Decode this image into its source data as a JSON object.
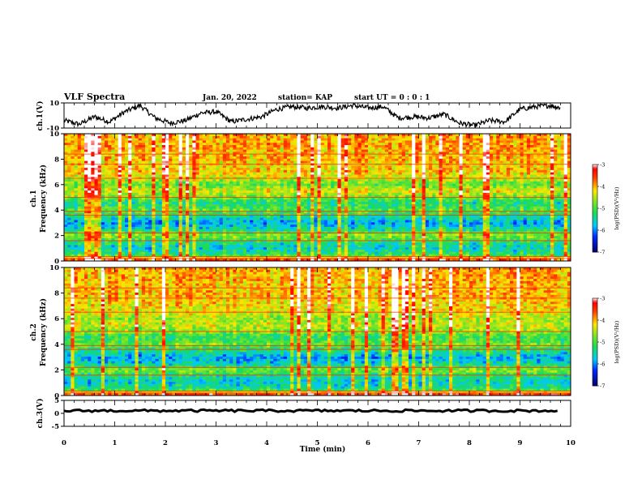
{
  "header": {
    "title": "VLF Spectra",
    "date": "Jan. 20, 2022",
    "station": "station= KAP",
    "start": "start UT =  0 : 0 : 1"
  },
  "chart_data": [
    {
      "type": "line",
      "name": "ch1-voltage",
      "ylabel": "ch.1(V)",
      "ylim": [
        -10,
        10
      ],
      "yticks": [
        "10",
        "-10"
      ],
      "x": [
        0,
        0.3,
        0.6,
        0.9,
        1.2,
        1.5,
        1.8,
        2.1,
        2.4,
        2.7,
        3.0,
        3.3,
        3.6,
        3.9,
        4.2,
        4.5,
        4.8,
        5.1,
        5.4,
        5.7,
        6.0,
        6.3,
        6.6,
        6.9,
        7.2,
        7.5,
        7.8,
        8.1,
        8.4,
        8.7,
        9.0,
        9.3,
        9.6,
        9.8
      ],
      "values": [
        -4,
        -7,
        -1,
        -5,
        3,
        8,
        -2,
        -6,
        -4,
        2,
        3,
        -5,
        -3,
        -1,
        5,
        7,
        6,
        7,
        6,
        8,
        6,
        7,
        -2,
        -1,
        -2,
        1,
        -6,
        -8,
        -4,
        -5,
        5,
        7,
        8,
        6
      ],
      "grid": false
    },
    {
      "type": "heatmap",
      "name": "ch1-spectrogram",
      "ylabel": "ch.1\nFrequency (kHz)",
      "ylim": [
        0,
        10
      ],
      "yticks": [
        "0",
        "2",
        "4",
        "6",
        "8",
        "10"
      ],
      "xlim": [
        0,
        10
      ],
      "colorbar": {
        "label": "log(PSD)(V²/Hz)",
        "ticks": [
          "-3",
          "-4",
          "-5",
          "-6",
          "-7"
        ],
        "range": [
          -7,
          -3
        ]
      },
      "band_levels_khz": [
        0,
        0.5,
        1,
        1.5,
        2,
        2.5,
        3,
        3.5,
        4,
        4.5,
        5,
        5.5,
        6,
        6.5,
        7,
        7.5,
        8,
        8.5,
        9,
        9.5,
        10
      ],
      "band_log_psd": [
        -3.2,
        -5.2,
        -5.6,
        -5.3,
        -4.6,
        -5.5,
        -5.9,
        -5.4,
        -4.9,
        -5.4,
        -4.8,
        -4.3,
        -4.9,
        -4.4,
        -4.1,
        -4.2,
        -4.0,
        -4.1,
        -3.9,
        -4.0,
        -3.9
      ]
    },
    {
      "type": "heatmap",
      "name": "ch2-spectrogram",
      "ylabel": "ch.2\nFrequency (kHz)",
      "ylim": [
        0,
        10
      ],
      "yticks": [
        "0",
        "2",
        "4",
        "6",
        "8",
        "10"
      ],
      "xlim": [
        0,
        10
      ],
      "colorbar": {
        "label": "log(PSD)(V²/Hz)",
        "ticks": [
          "-3",
          "-4",
          "-5",
          "-6",
          "-7"
        ],
        "range": [
          -7,
          -3
        ]
      },
      "band_levels_khz": [
        0,
        0.5,
        1,
        1.5,
        2,
        2.5,
        3,
        3.5,
        4,
        4.5,
        5,
        5.5,
        6,
        6.5,
        7,
        7.5,
        8,
        8.5,
        9,
        9.5,
        10
      ],
      "band_log_psd": [
        -3.2,
        -5.3,
        -5.6,
        -5.4,
        -4.7,
        -5.6,
        -5.9,
        -5.3,
        -4.8,
        -5.2,
        -4.7,
        -4.4,
        -4.6,
        -4.3,
        -4.2,
        -4.1,
        -4.0,
        -4.1,
        -4.0,
        -4.0,
        -3.9
      ]
    },
    {
      "type": "line",
      "name": "ch3-voltage",
      "ylabel": "ch.3(V)",
      "ylim": [
        -5,
        5
      ],
      "yticks": [
        "5",
        "0",
        "-5"
      ],
      "x": [
        0,
        9.8
      ],
      "values": [
        1,
        1
      ],
      "grid": false
    }
  ],
  "xaxis": {
    "label": "Time (min)",
    "ticks": [
      "0",
      "1",
      "2",
      "3",
      "4",
      "5",
      "6",
      "7",
      "8",
      "9",
      "10"
    ],
    "xlim": [
      0,
      10
    ]
  },
  "colors": {
    "low": "#00008b",
    "mid_low": "#00bfff",
    "mid": "#22dd44",
    "mid_high": "#ffee00",
    "high": "#ff2200",
    "top": "#ffffff"
  }
}
